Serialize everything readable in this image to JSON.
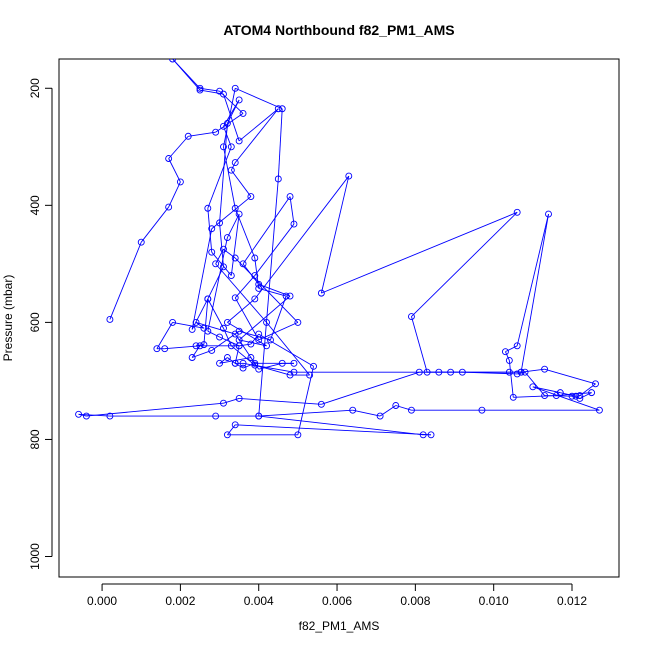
{
  "chart_data": {
    "type": "line",
    "title": "ATOM4 Northbound f82_PM1_AMS",
    "xlabel": "f82_PM1_AMS",
    "ylabel": "Pressure (mbar)",
    "xlim": [
      -0.0011,
      0.0132
    ],
    "ylim": [
      1035,
      150
    ],
    "x_ticks": [
      0.0,
      0.002,
      0.004,
      0.006,
      0.008,
      0.01,
      0.012
    ],
    "x_tick_labels": [
      "0.000",
      "0.002",
      "0.004",
      "0.006",
      "0.008",
      "0.010",
      "0.012"
    ],
    "y_ticks": [
      200,
      400,
      600,
      800,
      1000
    ],
    "y_tick_labels": [
      "200",
      "400",
      "600",
      "800",
      "1000"
    ],
    "grid": false,
    "legend": "none",
    "series": [
      {
        "color": "#0000ff",
        "marker": "open-circle",
        "points": [
          [
            0.0002,
            595
          ],
          [
            0.001,
            463
          ],
          [
            0.0017,
            403
          ],
          [
            0.002,
            360
          ],
          [
            0.0017,
            320
          ],
          [
            0.0022,
            282
          ],
          [
            0.0029,
            275
          ],
          [
            0.0036,
            243
          ],
          [
            0.003,
            205
          ],
          [
            0.0025,
            200
          ],
          [
            0.0018,
            150
          ],
          [
            0.0025,
            203
          ],
          [
            0.0031,
            210
          ],
          [
            0.0035,
            290
          ],
          [
            0.0045,
            235
          ],
          [
            0.0034,
            327
          ],
          [
            0.0033,
            340
          ],
          [
            0.0038,
            385
          ],
          [
            0.0028,
            440
          ],
          [
            0.0023,
            612
          ],
          [
            0.0027,
            560
          ],
          [
            0.0026,
            638
          ],
          [
            0.0024,
            640
          ],
          [
            0.0035,
            640
          ],
          [
            0.0034,
            670
          ],
          [
            0.0036,
            670
          ],
          [
            0.0049,
            685
          ],
          [
            0.0104,
            685
          ],
          [
            0.0107,
            685
          ],
          [
            0.0113,
            680
          ],
          [
            0.0126,
            705
          ],
          [
            0.0122,
            725
          ],
          [
            0.0121,
            726
          ],
          [
            0.0117,
            720
          ],
          [
            0.011,
            710
          ],
          [
            0.0127,
            750
          ],
          [
            0.0097,
            750
          ],
          [
            0.0079,
            750
          ],
          [
            0.0075,
            742
          ],
          [
            0.0071,
            760
          ],
          [
            0.0064,
            750
          ],
          [
            0.004,
            760
          ],
          [
            0.0029,
            760
          ],
          [
            0.0002,
            760
          ],
          [
            -0.0006,
            757
          ],
          [
            -0.0004,
            760
          ],
          [
            0.0031,
            738
          ],
          [
            0.0035,
            730
          ],
          [
            0.0056,
            740
          ],
          [
            0.0081,
            685
          ],
          [
            0.0086,
            685
          ],
          [
            0.0089,
            685
          ],
          [
            0.0092,
            685
          ],
          [
            0.0106,
            688
          ],
          [
            0.0108,
            685
          ],
          [
            0.0113,
            725
          ],
          [
            0.012,
            726
          ],
          [
            0.0122,
            730
          ],
          [
            0.0125,
            720
          ],
          [
            0.0116,
            725
          ],
          [
            0.0105,
            728
          ],
          [
            0.0104,
            665
          ],
          [
            0.0103,
            650
          ],
          [
            0.0106,
            640
          ],
          [
            0.0114,
            415
          ],
          [
            0.0107,
            685
          ],
          [
            0.0083,
            685
          ],
          [
            0.0079,
            590
          ],
          [
            0.0106,
            412
          ],
          [
            0.0056,
            550
          ],
          [
            0.0063,
            350
          ],
          [
            0.0039,
            560
          ],
          [
            0.0032,
            600
          ],
          [
            0.0042,
            640
          ],
          [
            0.0035,
            630
          ],
          [
            0.0048,
            555
          ],
          [
            0.004,
            535
          ],
          [
            0.0036,
            500
          ],
          [
            0.0048,
            385
          ],
          [
            0.0049,
            432
          ],
          [
            0.0039,
            520
          ],
          [
            0.0034,
            558
          ],
          [
            0.004,
            630
          ],
          [
            0.005,
            600
          ],
          [
            0.0034,
            490
          ],
          [
            0.0031,
            475
          ],
          [
            0.0029,
            500
          ],
          [
            0.0042,
            600
          ],
          [
            0.0053,
            690
          ],
          [
            0.0048,
            690
          ],
          [
            0.0039,
            673
          ],
          [
            0.0033,
            640
          ],
          [
            0.0031,
            610
          ],
          [
            0.0027,
            560
          ],
          [
            0.0031,
            505
          ],
          [
            0.003,
            430
          ],
          [
            0.0032,
            260
          ],
          [
            0.0035,
            220
          ],
          [
            0.0031,
            265
          ],
          [
            0.0033,
            300
          ],
          [
            0.0027,
            405
          ],
          [
            0.0028,
            480
          ],
          [
            0.0033,
            520
          ],
          [
            0.0035,
            415
          ],
          [
            0.0032,
            455
          ],
          [
            0.0027,
            615
          ],
          [
            0.003,
            625
          ],
          [
            0.0035,
            640
          ],
          [
            0.0038,
            637
          ],
          [
            0.004,
            620
          ],
          [
            0.0054,
            675
          ],
          [
            0.005,
            792
          ],
          [
            0.0032,
            792
          ],
          [
            0.0034,
            775
          ],
          [
            0.0084,
            792
          ],
          [
            0.0082,
            792
          ],
          [
            0.004,
            760
          ],
          [
            0.0045,
            355
          ],
          [
            0.0046,
            235
          ],
          [
            0.0034,
            200
          ],
          [
            0.0031,
            300
          ],
          [
            0.0034,
            405
          ],
          [
            0.0039,
            490
          ],
          [
            0.004,
            542
          ],
          [
            0.0047,
            555
          ],
          [
            0.0043,
            630
          ],
          [
            0.0035,
            615
          ],
          [
            0.0028,
            648
          ],
          [
            0.0023,
            660
          ],
          [
            0.0025,
            640
          ],
          [
            0.0016,
            645
          ],
          [
            0.0014,
            645
          ],
          [
            0.0018,
            600
          ],
          [
            0.0026,
            610
          ],
          [
            0.0024,
            600
          ],
          [
            0.0034,
            620
          ],
          [
            0.004,
            680
          ],
          [
            0.0046,
            670
          ],
          [
            0.0049,
            670
          ],
          [
            0.0039,
            670
          ],
          [
            0.0036,
            678
          ],
          [
            0.0034,
            670
          ],
          [
            0.0032,
            660
          ],
          [
            0.003,
            670
          ],
          [
            0.0038,
            660
          ]
        ]
      }
    ]
  }
}
